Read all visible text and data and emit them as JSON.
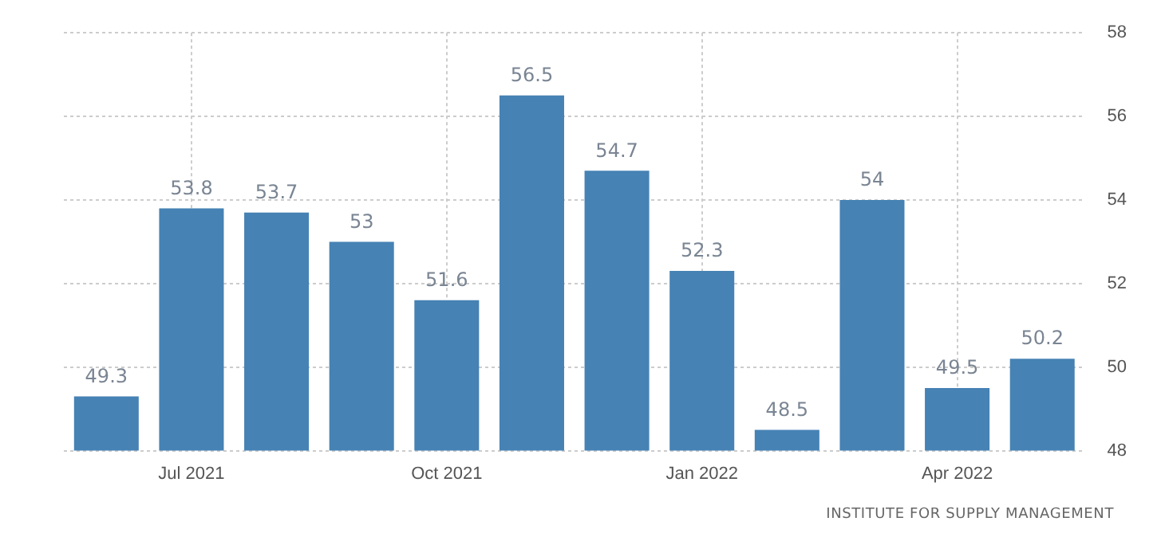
{
  "chart_data": {
    "type": "bar",
    "categories": [
      null,
      "Jul 2021",
      null,
      null,
      "Oct 2021",
      null,
      null,
      "Jan 2022",
      null,
      null,
      "Apr 2022",
      null
    ],
    "values": [
      49.3,
      53.8,
      53.7,
      53,
      51.6,
      56.5,
      54.7,
      52.3,
      48.5,
      54,
      49.5,
      50.2
    ],
    "color": "#4682b4",
    "ylim": [
      48,
      58
    ],
    "yticks": [
      48,
      50,
      52,
      54,
      56,
      58
    ],
    "grid": true,
    "data_labels": true,
    "annotations": [
      "INSTITUTE FOR SUPPLY MANAGEMENT"
    ]
  }
}
